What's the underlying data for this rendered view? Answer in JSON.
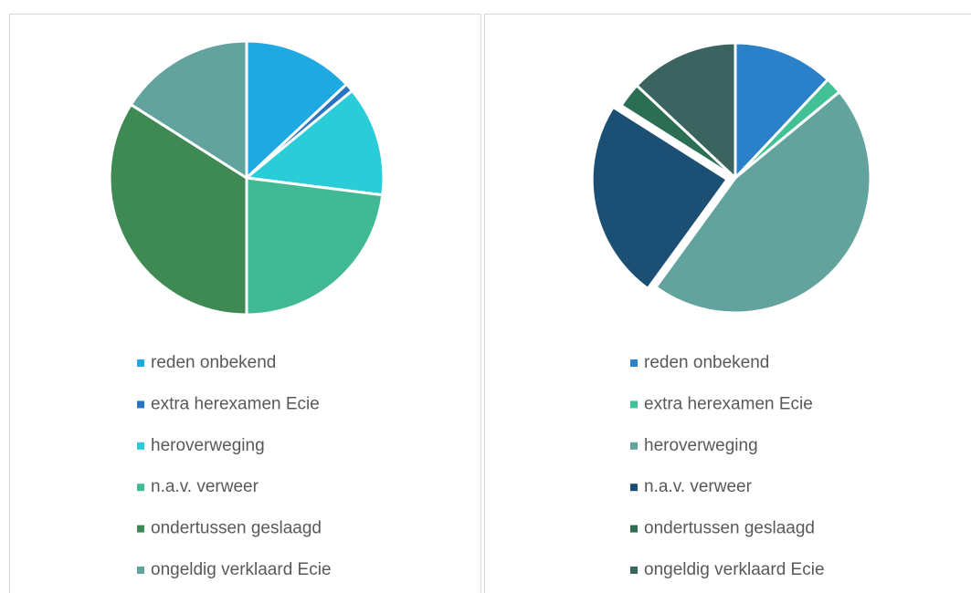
{
  "chart_data": [
    {
      "type": "pie",
      "categories": [
        "reden onbekend",
        "extra herexamen Ecie",
        "heroverweging",
        "n.a.v. verweer",
        "ondertussen geslaagd",
        "ongeldig verklaard Ecie"
      ],
      "values": [
        13,
        1,
        13,
        23,
        34,
        16
      ],
      "colors": [
        "#1fa9e1",
        "#2a73c0",
        "#2accd8",
        "#41b994",
        "#3f8a54",
        "#62a39d"
      ],
      "exploded": [
        false,
        false,
        false,
        false,
        false,
        false
      ],
      "legend": "bottom"
    },
    {
      "type": "pie",
      "categories": [
        "reden onbekend",
        "extra herexamen Ecie",
        "heroverweging",
        "n.a.v. verweer",
        "ondertussen geslaagd",
        "ongeldig verklaard Ecie"
      ],
      "values": [
        12,
        2,
        46,
        24,
        3,
        13
      ],
      "colors": [
        "#2a81c9",
        "#41c195",
        "#62a39d",
        "#1b4f74",
        "#2c6e54",
        "#3b6460"
      ],
      "exploded": [
        false,
        false,
        false,
        true,
        false,
        false
      ],
      "legend": "bottom"
    }
  ]
}
